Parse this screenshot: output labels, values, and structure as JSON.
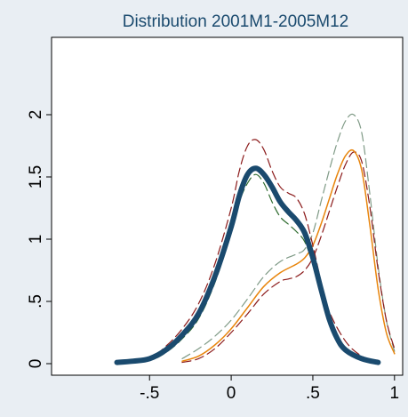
{
  "chart_data": {
    "type": "line",
    "title": "Distribution 2001M1-2005M12",
    "xlabel": "",
    "ylabel": "",
    "xlim": [
      -1.1,
      1.05
    ],
    "ylim": [
      0,
      2.5
    ],
    "x_ticks": [
      {
        "v": -0.5,
        "label": "-.5"
      },
      {
        "v": 0,
        "label": "0"
      },
      {
        "v": 0.5,
        "label": ".5"
      },
      {
        "v": 1,
        "label": "1"
      }
    ],
    "y_ticks": [
      {
        "v": 0,
        "label": "0"
      },
      {
        "v": 0.5,
        "label": ".5"
      },
      {
        "v": 1,
        "label": "1"
      },
      {
        "v": 1.5,
        "label": "1.5"
      },
      {
        "v": 2,
        "label": "2"
      }
    ],
    "grid": false,
    "legend": "none",
    "series": [
      {
        "color": "#1a4a6e",
        "style": "solid-thick",
        "x": [
          -0.7,
          -0.6,
          -0.5,
          -0.4,
          -0.3,
          -0.2,
          -0.1,
          0.0,
          0.05,
          0.1,
          0.15,
          0.2,
          0.25,
          0.3,
          0.35,
          0.4,
          0.45,
          0.5,
          0.55,
          0.6,
          0.65,
          0.7,
          0.8,
          0.9
        ],
        "y": [
          0.01,
          0.02,
          0.04,
          0.11,
          0.23,
          0.4,
          0.7,
          1.1,
          1.35,
          1.52,
          1.57,
          1.52,
          1.42,
          1.3,
          1.22,
          1.15,
          1.05,
          0.85,
          0.6,
          0.36,
          0.2,
          0.11,
          0.04,
          0.01
        ]
      },
      {
        "color": "#8b1a1a",
        "style": "dashed",
        "x": [
          -0.7,
          -0.5,
          -0.4,
          -0.3,
          -0.2,
          -0.1,
          0.0,
          0.05,
          0.1,
          0.15,
          0.2,
          0.25,
          0.3,
          0.35,
          0.4,
          0.45,
          0.5,
          0.55,
          0.6,
          0.7,
          0.8,
          0.9
        ],
        "y": [
          0.02,
          0.05,
          0.14,
          0.28,
          0.48,
          0.8,
          1.25,
          1.55,
          1.75,
          1.8,
          1.72,
          1.55,
          1.42,
          1.37,
          1.33,
          1.2,
          0.95,
          0.66,
          0.42,
          0.18,
          0.06,
          0.02
        ]
      },
      {
        "color": "#2e6b2e",
        "style": "dashed",
        "x": [
          -0.7,
          -0.5,
          -0.4,
          -0.3,
          -0.2,
          -0.1,
          0.0,
          0.05,
          0.1,
          0.15,
          0.2,
          0.25,
          0.3,
          0.35,
          0.4,
          0.45,
          0.5,
          0.55,
          0.6,
          0.7,
          0.8,
          0.9
        ],
        "y": [
          0.01,
          0.03,
          0.09,
          0.2,
          0.36,
          0.65,
          1.05,
          1.3,
          1.45,
          1.52,
          1.45,
          1.3,
          1.18,
          1.12,
          1.06,
          0.98,
          0.8,
          0.56,
          0.34,
          0.13,
          0.04,
          0.01
        ]
      },
      {
        "color": "#e8850c",
        "style": "solid",
        "x": [
          -0.3,
          -0.2,
          -0.1,
          0.0,
          0.1,
          0.2,
          0.3,
          0.4,
          0.45,
          0.5,
          0.55,
          0.6,
          0.65,
          0.7,
          0.75,
          0.8,
          0.85,
          0.9,
          0.95,
          1.0
        ],
        "y": [
          0.02,
          0.06,
          0.15,
          0.28,
          0.45,
          0.62,
          0.73,
          0.8,
          0.85,
          0.95,
          1.12,
          1.32,
          1.52,
          1.67,
          1.71,
          1.55,
          1.1,
          0.6,
          0.25,
          0.08
        ]
      },
      {
        "color": "#8b1a1a",
        "style": "dashed",
        "x": [
          -0.3,
          -0.2,
          -0.1,
          0.0,
          0.1,
          0.2,
          0.3,
          0.35,
          0.4,
          0.45,
          0.5,
          0.55,
          0.6,
          0.65,
          0.7,
          0.75,
          0.8,
          0.85,
          0.9,
          0.95,
          1.0
        ],
        "y": [
          0.01,
          0.04,
          0.12,
          0.25,
          0.4,
          0.56,
          0.66,
          0.68,
          0.7,
          0.75,
          0.85,
          1.02,
          1.22,
          1.42,
          1.6,
          1.7,
          1.62,
          1.25,
          0.75,
          0.35,
          0.12
        ]
      },
      {
        "color": "#7f9a86",
        "style": "dashed",
        "x": [
          -0.3,
          -0.2,
          -0.1,
          0.0,
          0.1,
          0.2,
          0.3,
          0.4,
          0.45,
          0.5,
          0.55,
          0.6,
          0.65,
          0.7,
          0.75,
          0.8,
          0.85,
          0.9,
          0.95,
          1.0
        ],
        "y": [
          0.04,
          0.12,
          0.22,
          0.35,
          0.52,
          0.7,
          0.82,
          0.88,
          0.92,
          1.05,
          1.3,
          1.55,
          1.78,
          1.95,
          2.0,
          1.85,
          1.35,
          0.78,
          0.35,
          0.1
        ]
      }
    ]
  }
}
